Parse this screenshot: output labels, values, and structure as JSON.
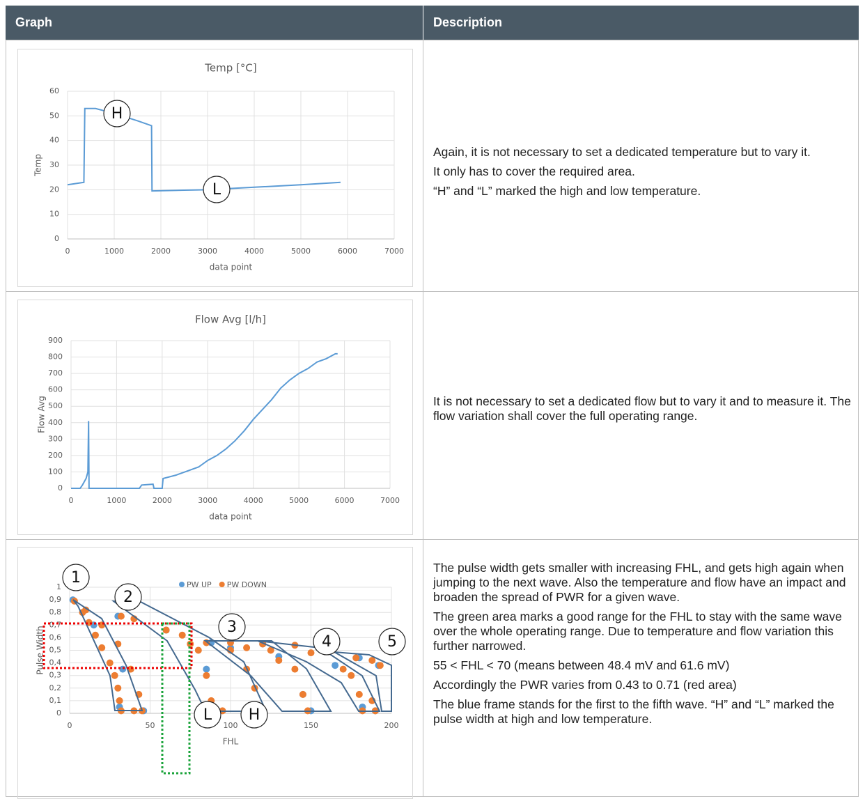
{
  "table": {
    "headers": [
      "Graph",
      "Description"
    ],
    "rows": [
      {
        "description": [
          "Again, it is not necessary to set a dedicated temperature but to vary it.",
          "It only has to cover the required area.",
          "“H” and “L” marked the high and low temperature."
        ]
      },
      {
        "description": [
          "It is not necessary to set a dedicated flow but to vary it and to measure it. The flow variation shall cover the full operating range."
        ]
      },
      {
        "description": [
          "The pulse width gets smaller with increasing FHL, and gets high again when jumping to the next wave. Also the temperature and flow have an impact and broaden the spread of PWR for a given wave.",
          "The green area marks a good range for the FHL to stay with the same wave over the whole operating range. Due to temperature and flow variation this further narrowed.",
          "55 < FHL < 70 (means between 48.4 mV and 61.6 mV)",
          "Accordingly the PWR varies from 0.43 to 0.71 (red area)",
          "The blue frame stands for the first to the fifth wave. “H” and “L” marked the pulse width at high and low temperature."
        ]
      }
    ]
  },
  "chart_data": [
    {
      "type": "line",
      "title": "Temp [°C]",
      "x_label": "data point",
      "y_label": "Temp",
      "x": [
        0,
        350,
        370,
        600,
        1000,
        1500,
        1800,
        1810,
        2500,
        3000,
        4000,
        5000,
        5850
      ],
      "series": [
        {
          "name": "Temp",
          "color": "#5b9bd5",
          "values": [
            22,
            23,
            53,
            53,
            51,
            48,
            46,
            19.5,
            19.8,
            20,
            21,
            22,
            23
          ]
        }
      ],
      "xlim": [
        0,
        7000
      ],
      "xticks": [
        0,
        1000,
        2000,
        3000,
        4000,
        5000,
        6000,
        7000
      ],
      "ylim": [
        0,
        60
      ],
      "yticks": [
        0,
        10,
        20,
        30,
        40,
        50,
        60
      ],
      "grid": true,
      "annotations": [
        "H",
        "L"
      ]
    },
    {
      "type": "line",
      "title": "Flow Avg [l/h]",
      "x_label": "data point",
      "y_label": "Flow Avg",
      "x": [
        0,
        200,
        250,
        330,
        370,
        385,
        395,
        1000,
        1500,
        1550,
        1800,
        1820,
        2000,
        2020,
        2300,
        2500,
        2800,
        3000,
        3200,
        3400,
        3600,
        3800,
        4000,
        4200,
        4400,
        4600,
        4800,
        5000,
        5200,
        5400,
        5600,
        5800,
        5850
      ],
      "series": [
        {
          "name": "Flow Avg",
          "color": "#5b9bd5",
          "values": [
            0,
            0,
            20,
            60,
            100,
            410,
            0,
            0,
            0,
            20,
            25,
            0,
            0,
            60,
            80,
            100,
            130,
            170,
            200,
            240,
            290,
            350,
            420,
            480,
            540,
            610,
            660,
            700,
            730,
            770,
            790,
            820,
            820
          ]
        }
      ],
      "xlim": [
        0,
        7000
      ],
      "xticks": [
        0,
        1000,
        2000,
        3000,
        4000,
        5000,
        6000,
        7000
      ],
      "ylim": [
        0,
        900
      ],
      "yticks": [
        0,
        100,
        200,
        300,
        400,
        500,
        600,
        700,
        800,
        900
      ],
      "grid": true,
      "annotations": []
    },
    {
      "type": "scatter",
      "x_label": "FHL",
      "y_label": "Pulse Width",
      "series": [
        {
          "name": "PW UP",
          "color": "#5b9bd5",
          "x": [
            2,
            15,
            33,
            46,
            31,
            30,
            60,
            85,
            92,
            100,
            118,
            88,
            130,
            145,
            150,
            120,
            165,
            182,
            190,
            180,
            192
          ],
          "values": [
            0.9,
            0.7,
            0.35,
            0.02,
            0.05,
            0.77,
            0.66,
            0.35,
            0.02,
            0.52,
            0.02,
            0.56,
            0.45,
            0.15,
            0.02,
            0.55,
            0.38,
            0.05,
            0.02,
            0.44,
            0.38
          ]
        },
        {
          "name": "PW DOWN",
          "color": "#ed7d31",
          "x": [
            3,
            8,
            12,
            16,
            20,
            25,
            28,
            30,
            31,
            32,
            40,
            45,
            43,
            38,
            30,
            20,
            10,
            32,
            40,
            60,
            70,
            75,
            80,
            85,
            88,
            90,
            95,
            100,
            110,
            115,
            118,
            85,
            100,
            110,
            125,
            130,
            140,
            145,
            148,
            120,
            140,
            150,
            170,
            175,
            180,
            182,
            188,
            190,
            178,
            188,
            193
          ],
          "values": [
            0.89,
            0.8,
            0.72,
            0.62,
            0.52,
            0.4,
            0.3,
            0.2,
            0.1,
            0.02,
            0.02,
            0.02,
            0.15,
            0.35,
            0.55,
            0.7,
            0.82,
            0.77,
            0.75,
            0.66,
            0.62,
            0.55,
            0.5,
            0.3,
            0.1,
            0.02,
            0.02,
            0.5,
            0.35,
            0.2,
            0.02,
            0.56,
            0.56,
            0.52,
            0.5,
            0.42,
            0.35,
            0.15,
            0.02,
            0.55,
            0.54,
            0.48,
            0.35,
            0.3,
            0.15,
            0.02,
            0.1,
            0.02,
            0.44,
            0.42,
            0.38
          ]
        }
      ],
      "xlim": [
        0,
        200
      ],
      "xticks": [
        0,
        50,
        100,
        150,
        200
      ],
      "ylim": [
        0,
        1
      ],
      "yticks": [
        0,
        {
          "value": 0.1,
          "label": "0,1"
        },
        {
          "value": 0.2,
          "label": "0,2"
        },
        {
          "value": 0.3,
          "label": "0,3"
        },
        {
          "value": 0.4,
          "label": "0,4"
        },
        {
          "value": 0.5,
          "label": "0,5"
        },
        {
          "value": 0.6,
          "label": "0,6"
        },
        {
          "value": 0.7,
          "label": "0,7"
        },
        {
          "value": 0.8,
          "label": "0,8"
        },
        {
          "value": 0.9,
          "label": "0,9"
        },
        1
      ],
      "grid": true,
      "legend": "top",
      "annotations": [
        "1",
        "2",
        "3",
        "4",
        "5",
        "L",
        "H"
      ]
    }
  ]
}
